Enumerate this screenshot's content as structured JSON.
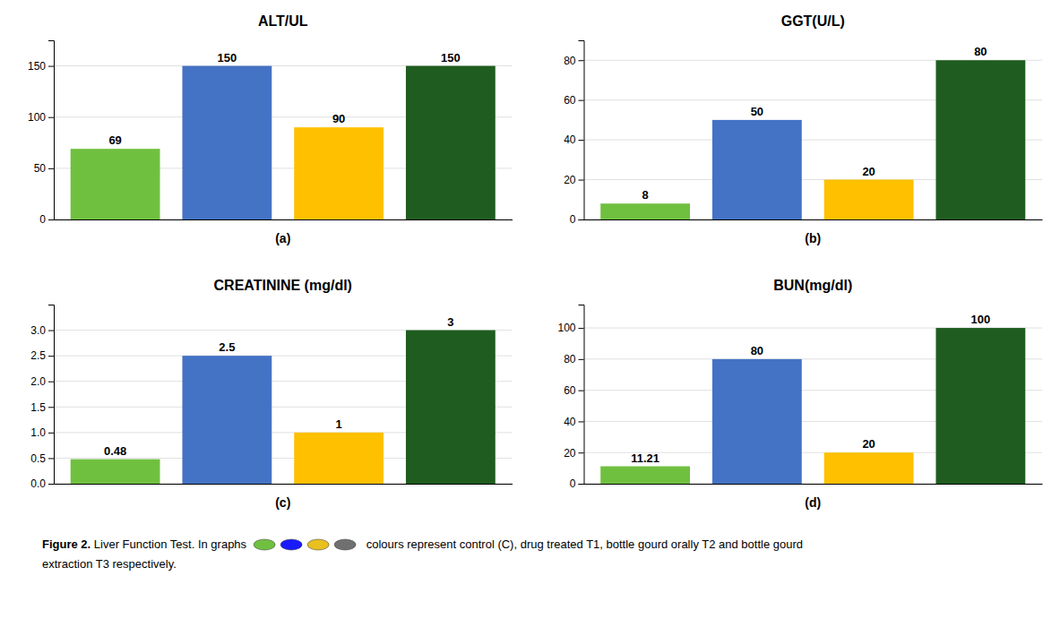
{
  "chart_data": [
    {
      "type": "bar",
      "title": "ALT/UL",
      "xlabel": "(a)",
      "categories": [
        null,
        null,
        null,
        null
      ],
      "values": [
        69,
        150,
        90,
        150
      ],
      "colors": [
        "#70c040",
        "#4472c4",
        "#ffc000",
        "#1f5c1f"
      ],
      "ylim": [
        0,
        175
      ],
      "yticks": [
        0,
        50,
        100,
        150
      ],
      "grid": true,
      "data_labels": true,
      "tick_labels": "y"
    },
    {
      "type": "bar",
      "title": "GGT(U/L)",
      "xlabel": "(b)",
      "categories": [
        null,
        null,
        null,
        null
      ],
      "values": [
        8,
        50,
        20,
        80
      ],
      "colors": [
        "#70c040",
        "#4472c4",
        "#ffc000",
        "#1f5c1f"
      ],
      "ylim": [
        0,
        90
      ],
      "yticks": [
        0,
        20,
        40,
        60,
        80
      ],
      "grid": true,
      "data_labels": true,
      "tick_labels": "y"
    },
    {
      "type": "bar",
      "title": "CREATININE (mg/dl)",
      "xlabel": "(c)",
      "categories": [
        null,
        null,
        null,
        null
      ],
      "values": [
        0.48,
        2.5,
        1,
        3
      ],
      "colors": [
        "#70c040",
        "#4472c4",
        "#ffc000",
        "#1f5c1f"
      ],
      "ylim": [
        0,
        3.5
      ],
      "yticks": [
        {
          "value": 0,
          "label": "0.0"
        },
        {
          "value": 0.5,
          "label": "0.5"
        },
        {
          "value": 1.0,
          "label": "1.0"
        },
        {
          "value": 1.5,
          "label": "1.5"
        },
        {
          "value": 2.0,
          "label": "2.0"
        },
        {
          "value": 2.5,
          "label": "2.5"
        },
        {
          "value": 3.0,
          "label": "3.0"
        }
      ],
      "grid": true,
      "data_labels": true,
      "tick_labels": "y"
    },
    {
      "type": "bar",
      "title": "BUN(mg/dl)",
      "xlabel": "(d)",
      "categories": [
        null,
        null,
        null,
        null
      ],
      "values": [
        11.21,
        80,
        20,
        100
      ],
      "colors": [
        "#70c040",
        "#4472c4",
        "#ffc000",
        "#1f5c1f"
      ],
      "ylim": [
        0,
        115
      ],
      "yticks": [
        0,
        20,
        40,
        60,
        80,
        100
      ],
      "grid": true,
      "data_labels": true,
      "tick_labels": "y"
    }
  ],
  "caption": {
    "label": "Figure 2.",
    "text": " Liver Function Test. In graphs",
    "colors": [
      "#70c040",
      "#1a1aff",
      "#e8c020",
      "#707070"
    ],
    "text_after": " colours represent control (C), drug treated T1, bottle gourd orally T2 and bottle gourd",
    "line2": "extraction T3 respectively."
  }
}
